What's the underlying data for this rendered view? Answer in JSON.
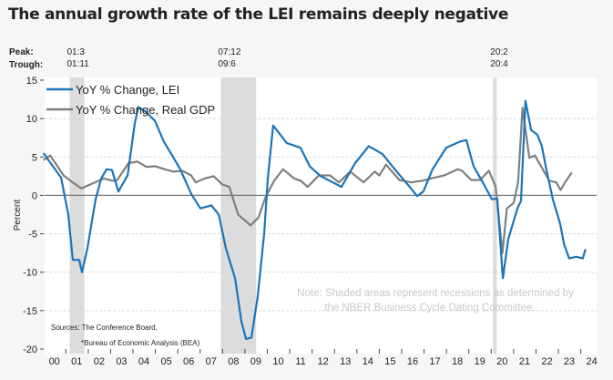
{
  "title": "The annual growth rate of the LEI remains deeply negative",
  "peak_label": "Peak:",
  "trough_label": "Trough:",
  "recessions": [
    {
      "peak": "01:3",
      "trough": "01:11",
      "start": 2001.17,
      "end": 2001.83
    },
    {
      "peak": "07:12",
      "trough": "09:6",
      "start": 2007.92,
      "end": 2009.5
    },
    {
      "peak": "20:2",
      "trough": "20:4",
      "start": 2020.08,
      "end": 2020.25
    }
  ],
  "note_line1": "Note: Shaded areas represent recessions as determined by",
  "note_line2": "the NBER Business Cycle Dating Committee.",
  "sources_line1": "Sources: The Conference Board,",
  "sources_line2": "*Bureau of Economic Analysis (BEA)",
  "colors": {
    "lei": "#1a75bc",
    "gdp": "#7f7f7f",
    "recession": "#dcdcdc"
  },
  "chart_data": {
    "type": "line",
    "ylabel": "Percent",
    "ylim": [
      -20,
      15
    ],
    "xlim": [
      2000,
      2024.5
    ],
    "yticks": [
      15,
      10,
      5,
      0,
      -5,
      -10,
      -15,
      -20
    ],
    "xtick_labels": [
      "00",
      "01",
      "02",
      "03",
      "04",
      "05",
      "06",
      "07",
      "08",
      "09",
      "10",
      "11",
      "12",
      "13",
      "14",
      "15",
      "16",
      "17",
      "18",
      "19",
      "20",
      "21",
      "22",
      "23",
      "24"
    ],
    "grid": "horizontal dashed",
    "legend": "top-left",
    "series": [
      {
        "name": "YoY % Change, LEI",
        "points": [
          [
            2000.0,
            5.5
          ],
          [
            2000.42,
            3.8
          ],
          [
            2000.79,
            2.3
          ],
          [
            2001.11,
            -2.5
          ],
          [
            2001.31,
            -8.4
          ],
          [
            2001.6,
            -8.4
          ],
          [
            2001.72,
            -10.0
          ],
          [
            2001.96,
            -6.9
          ],
          [
            2002.33,
            -0.5
          ],
          [
            2002.58,
            2.2
          ],
          [
            2002.82,
            3.4
          ],
          [
            2003.06,
            3.3
          ],
          [
            2003.35,
            0.5
          ],
          [
            2003.76,
            2.6
          ],
          [
            2004.08,
            9.4
          ],
          [
            2004.24,
            11.5
          ],
          [
            2004.57,
            10.9
          ],
          [
            2004.98,
            9.7
          ],
          [
            2005.38,
            7.0
          ],
          [
            2005.79,
            5.0
          ],
          [
            2006.11,
            3.4
          ],
          [
            2006.6,
            0.2
          ],
          [
            2007.01,
            -1.7
          ],
          [
            2007.5,
            -1.3
          ],
          [
            2007.83,
            -2.5
          ],
          [
            2008.15,
            -6.9
          ],
          [
            2008.56,
            -10.8
          ],
          [
            2008.84,
            -16.4
          ],
          [
            2009.05,
            -18.7
          ],
          [
            2009.29,
            -18.5
          ],
          [
            2009.57,
            -13.2
          ],
          [
            2009.86,
            -4.9
          ],
          [
            2010.02,
            2.2
          ],
          [
            2010.26,
            9.1
          ],
          [
            2010.87,
            6.8
          ],
          [
            2011.48,
            6.2
          ],
          [
            2011.89,
            3.8
          ],
          [
            2012.38,
            2.5
          ],
          [
            2012.79,
            1.9
          ],
          [
            2013.31,
            1.1
          ],
          [
            2013.92,
            4.2
          ],
          [
            2014.53,
            6.4
          ],
          [
            2015.14,
            5.4
          ],
          [
            2015.75,
            3.2
          ],
          [
            2016.36,
            1.1
          ],
          [
            2016.69,
            -0.1
          ],
          [
            2016.97,
            0.5
          ],
          [
            2017.38,
            3.4
          ],
          [
            2017.99,
            6.2
          ],
          [
            2018.6,
            7.0
          ],
          [
            2018.89,
            7.2
          ],
          [
            2019.21,
            3.8
          ],
          [
            2019.62,
            1.7
          ],
          [
            2020.03,
            -0.5
          ],
          [
            2020.27,
            -0.4
          ],
          [
            2020.52,
            -10.8
          ],
          [
            2020.76,
            -5.7
          ],
          [
            2021.17,
            -1.7
          ],
          [
            2021.33,
            -0.7
          ],
          [
            2021.53,
            12.3
          ],
          [
            2021.78,
            8.5
          ],
          [
            2022.06,
            7.9
          ],
          [
            2022.26,
            6.4
          ],
          [
            2022.46,
            3.4
          ],
          [
            2022.75,
            -0.5
          ],
          [
            2023.08,
            -3.7
          ],
          [
            2023.26,
            -6.4
          ],
          [
            2023.48,
            -8.2
          ],
          [
            2023.8,
            -8.0
          ],
          [
            2024.09,
            -8.2
          ],
          [
            2024.21,
            -7.0
          ]
        ]
      },
      {
        "name": "YoY % Change, Real GDP",
        "points": [
          [
            2000.0,
            4.6
          ],
          [
            2000.3,
            5.2
          ],
          [
            2000.9,
            2.6
          ],
          [
            2001.3,
            1.7
          ],
          [
            2001.7,
            0.9
          ],
          [
            2002.0,
            1.3
          ],
          [
            2002.7,
            2.2
          ],
          [
            2003.1,
            1.9
          ],
          [
            2003.3,
            2.0
          ],
          [
            2003.8,
            4.2
          ],
          [
            2004.2,
            4.4
          ],
          [
            2004.6,
            3.7
          ],
          [
            2005.0,
            3.8
          ],
          [
            2005.4,
            3.4
          ],
          [
            2005.8,
            3.1
          ],
          [
            2006.2,
            3.2
          ],
          [
            2006.6,
            2.6
          ],
          [
            2006.8,
            1.7
          ],
          [
            2007.2,
            2.2
          ],
          [
            2007.6,
            2.5
          ],
          [
            2008.0,
            1.4
          ],
          [
            2008.3,
            1.1
          ],
          [
            2008.7,
            -2.5
          ],
          [
            2009.25,
            -3.9
          ],
          [
            2009.6,
            -2.9
          ],
          [
            2009.9,
            -0.4
          ],
          [
            2010.3,
            1.9
          ],
          [
            2010.7,
            3.4
          ],
          [
            2011.2,
            2.2
          ],
          [
            2011.5,
            1.9
          ],
          [
            2011.8,
            1.1
          ],
          [
            2012.3,
            2.6
          ],
          [
            2012.8,
            2.6
          ],
          [
            2013.2,
            1.7
          ],
          [
            2013.7,
            3.1
          ],
          [
            2014.3,
            1.7
          ],
          [
            2014.8,
            3.1
          ],
          [
            2015.0,
            2.6
          ],
          [
            2015.3,
            4.0
          ],
          [
            2015.9,
            2.0
          ],
          [
            2016.4,
            1.7
          ],
          [
            2016.9,
            1.9
          ],
          [
            2017.3,
            2.2
          ],
          [
            2017.9,
            2.6
          ],
          [
            2018.5,
            3.4
          ],
          [
            2018.7,
            3.2
          ],
          [
            2019.1,
            2.0
          ],
          [
            2019.5,
            2.0
          ],
          [
            2019.9,
            3.2
          ],
          [
            2020.2,
            1.1
          ],
          [
            2020.5,
            -7.5
          ],
          [
            2020.7,
            -1.7
          ],
          [
            2021.0,
            -1.0
          ],
          [
            2021.2,
            1.7
          ],
          [
            2021.4,
            11.4
          ],
          [
            2021.7,
            4.9
          ],
          [
            2021.95,
            5.2
          ],
          [
            2022.3,
            3.4
          ],
          [
            2022.6,
            1.9
          ],
          [
            2022.9,
            1.7
          ],
          [
            2023.1,
            0.7
          ],
          [
            2023.3,
            1.7
          ],
          [
            2023.6,
            3.0
          ]
        ]
      }
    ]
  }
}
